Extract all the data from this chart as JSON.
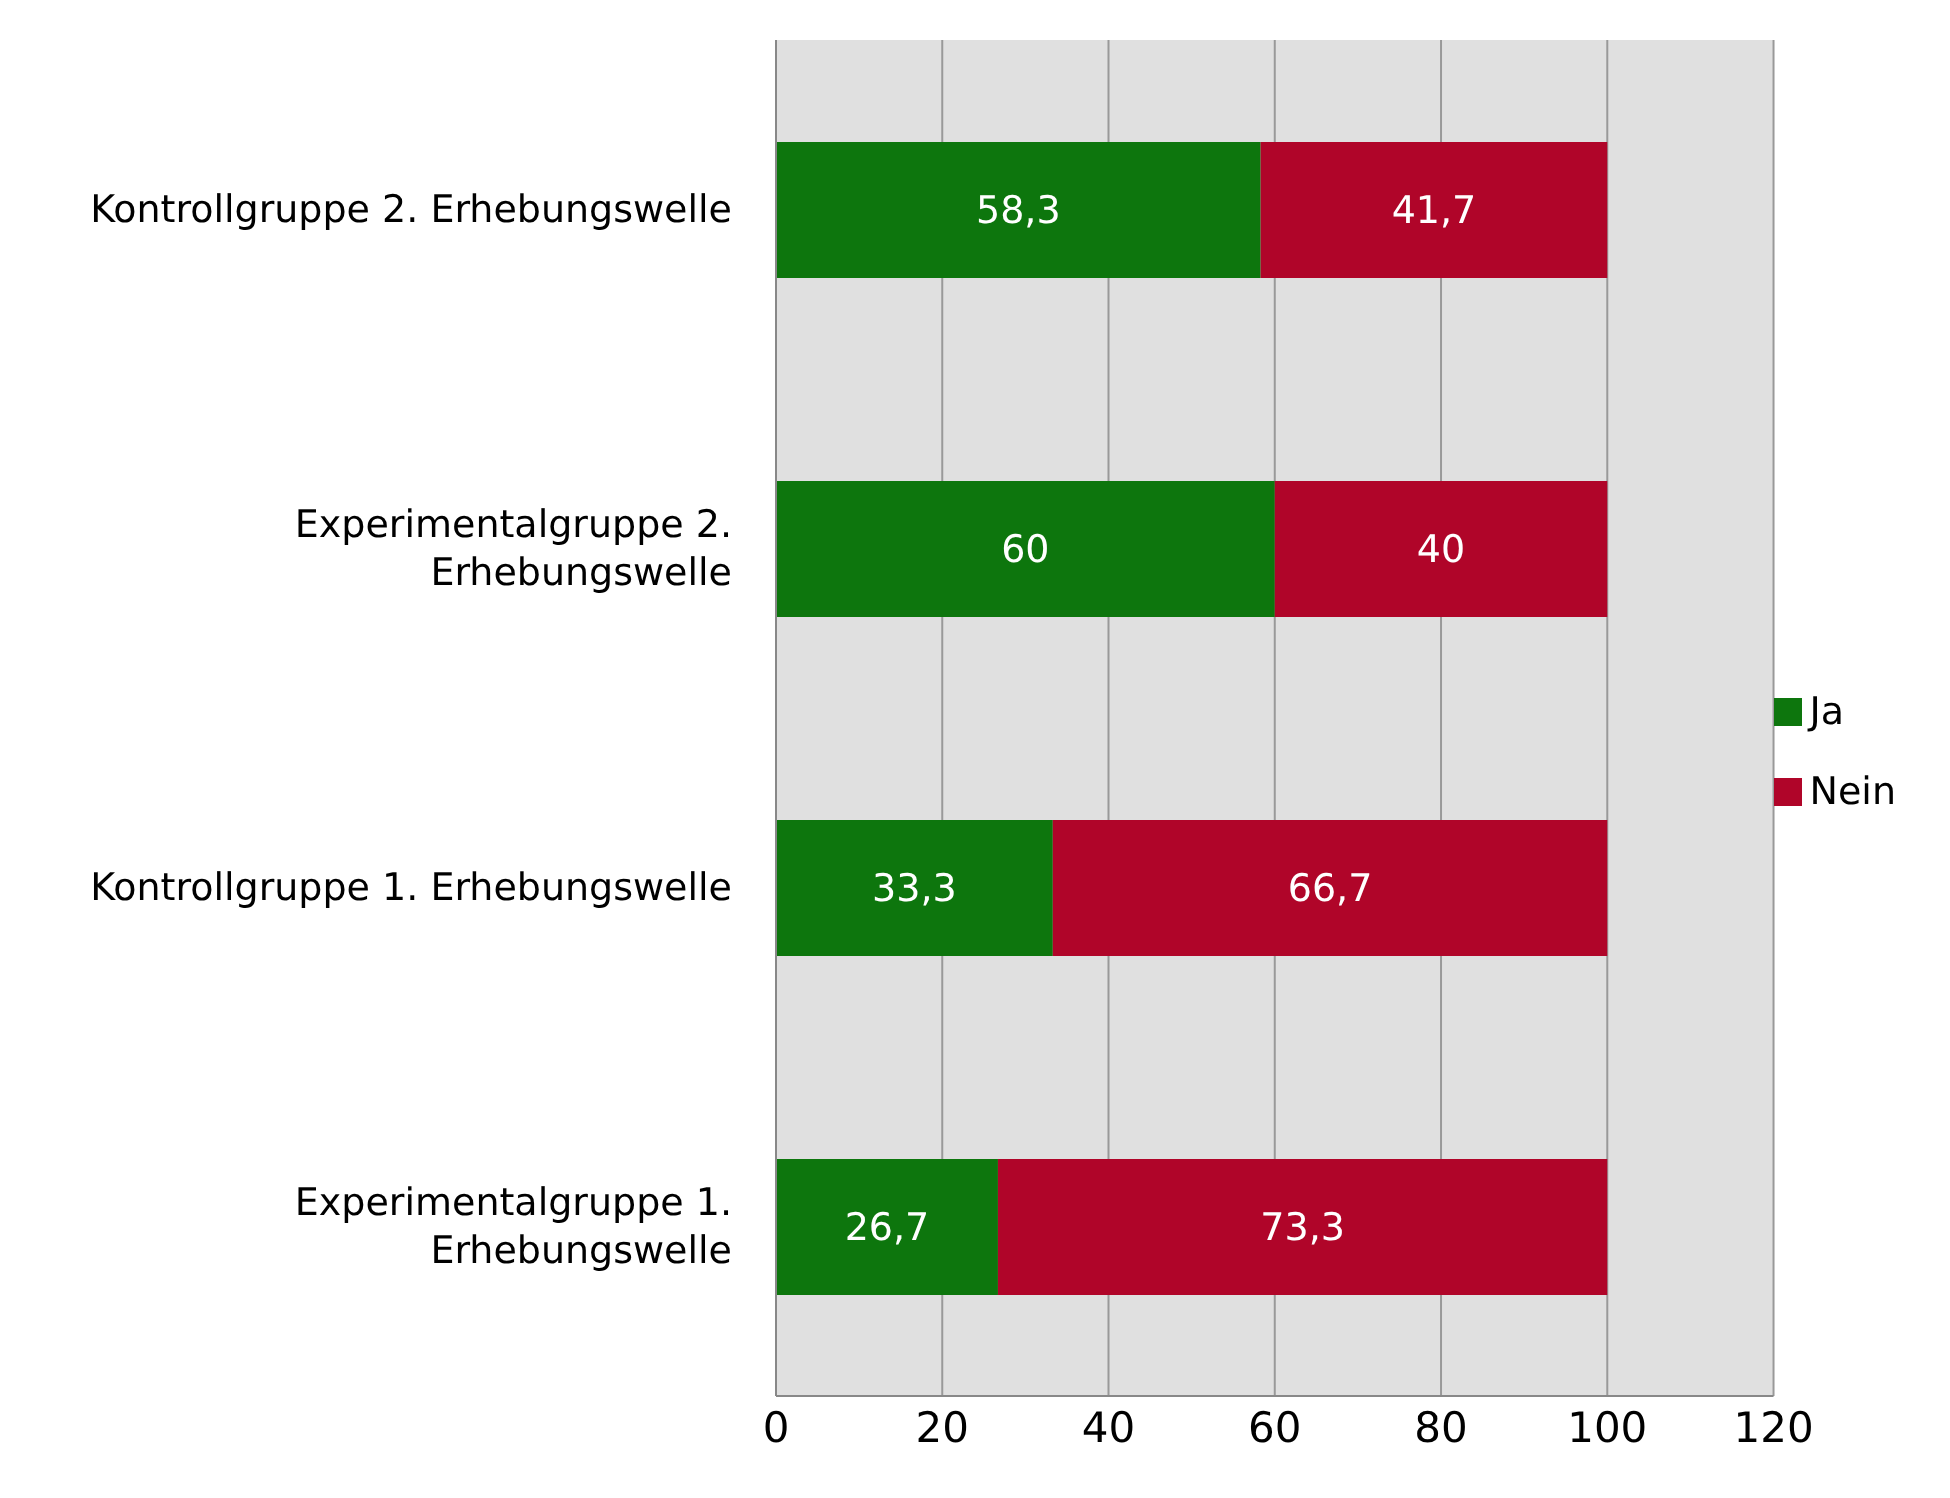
{
  "chart_data": {
    "type": "bar",
    "orientation": "horizontal",
    "stacked": true,
    "categories": [
      "Kontrollgruppe 2. Erhebungswelle",
      "Experimentalgruppe 2. Erhebungswelle",
      "Kontrollgruppe 1. Erhebungswelle",
      "Experimentalgruppe 1. Erhebungswelle"
    ],
    "series": [
      {
        "name": "Ja",
        "color": "#0d760d",
        "values": [
          58.3,
          60,
          33.3,
          26.7
        ],
        "value_labels": [
          "58,3",
          "60",
          "33,3",
          "26,7"
        ]
      },
      {
        "name": "Nein",
        "color": "#b00529",
        "values": [
          41.7,
          40,
          66.7,
          73.3
        ],
        "value_labels": [
          "41,7",
          "40",
          "66,7",
          "73,3"
        ]
      }
    ],
    "xlim": [
      0,
      120
    ],
    "xticks": [
      0,
      20,
      40,
      60,
      80,
      100,
      120
    ],
    "grid": "x",
    "legend": "right"
  }
}
